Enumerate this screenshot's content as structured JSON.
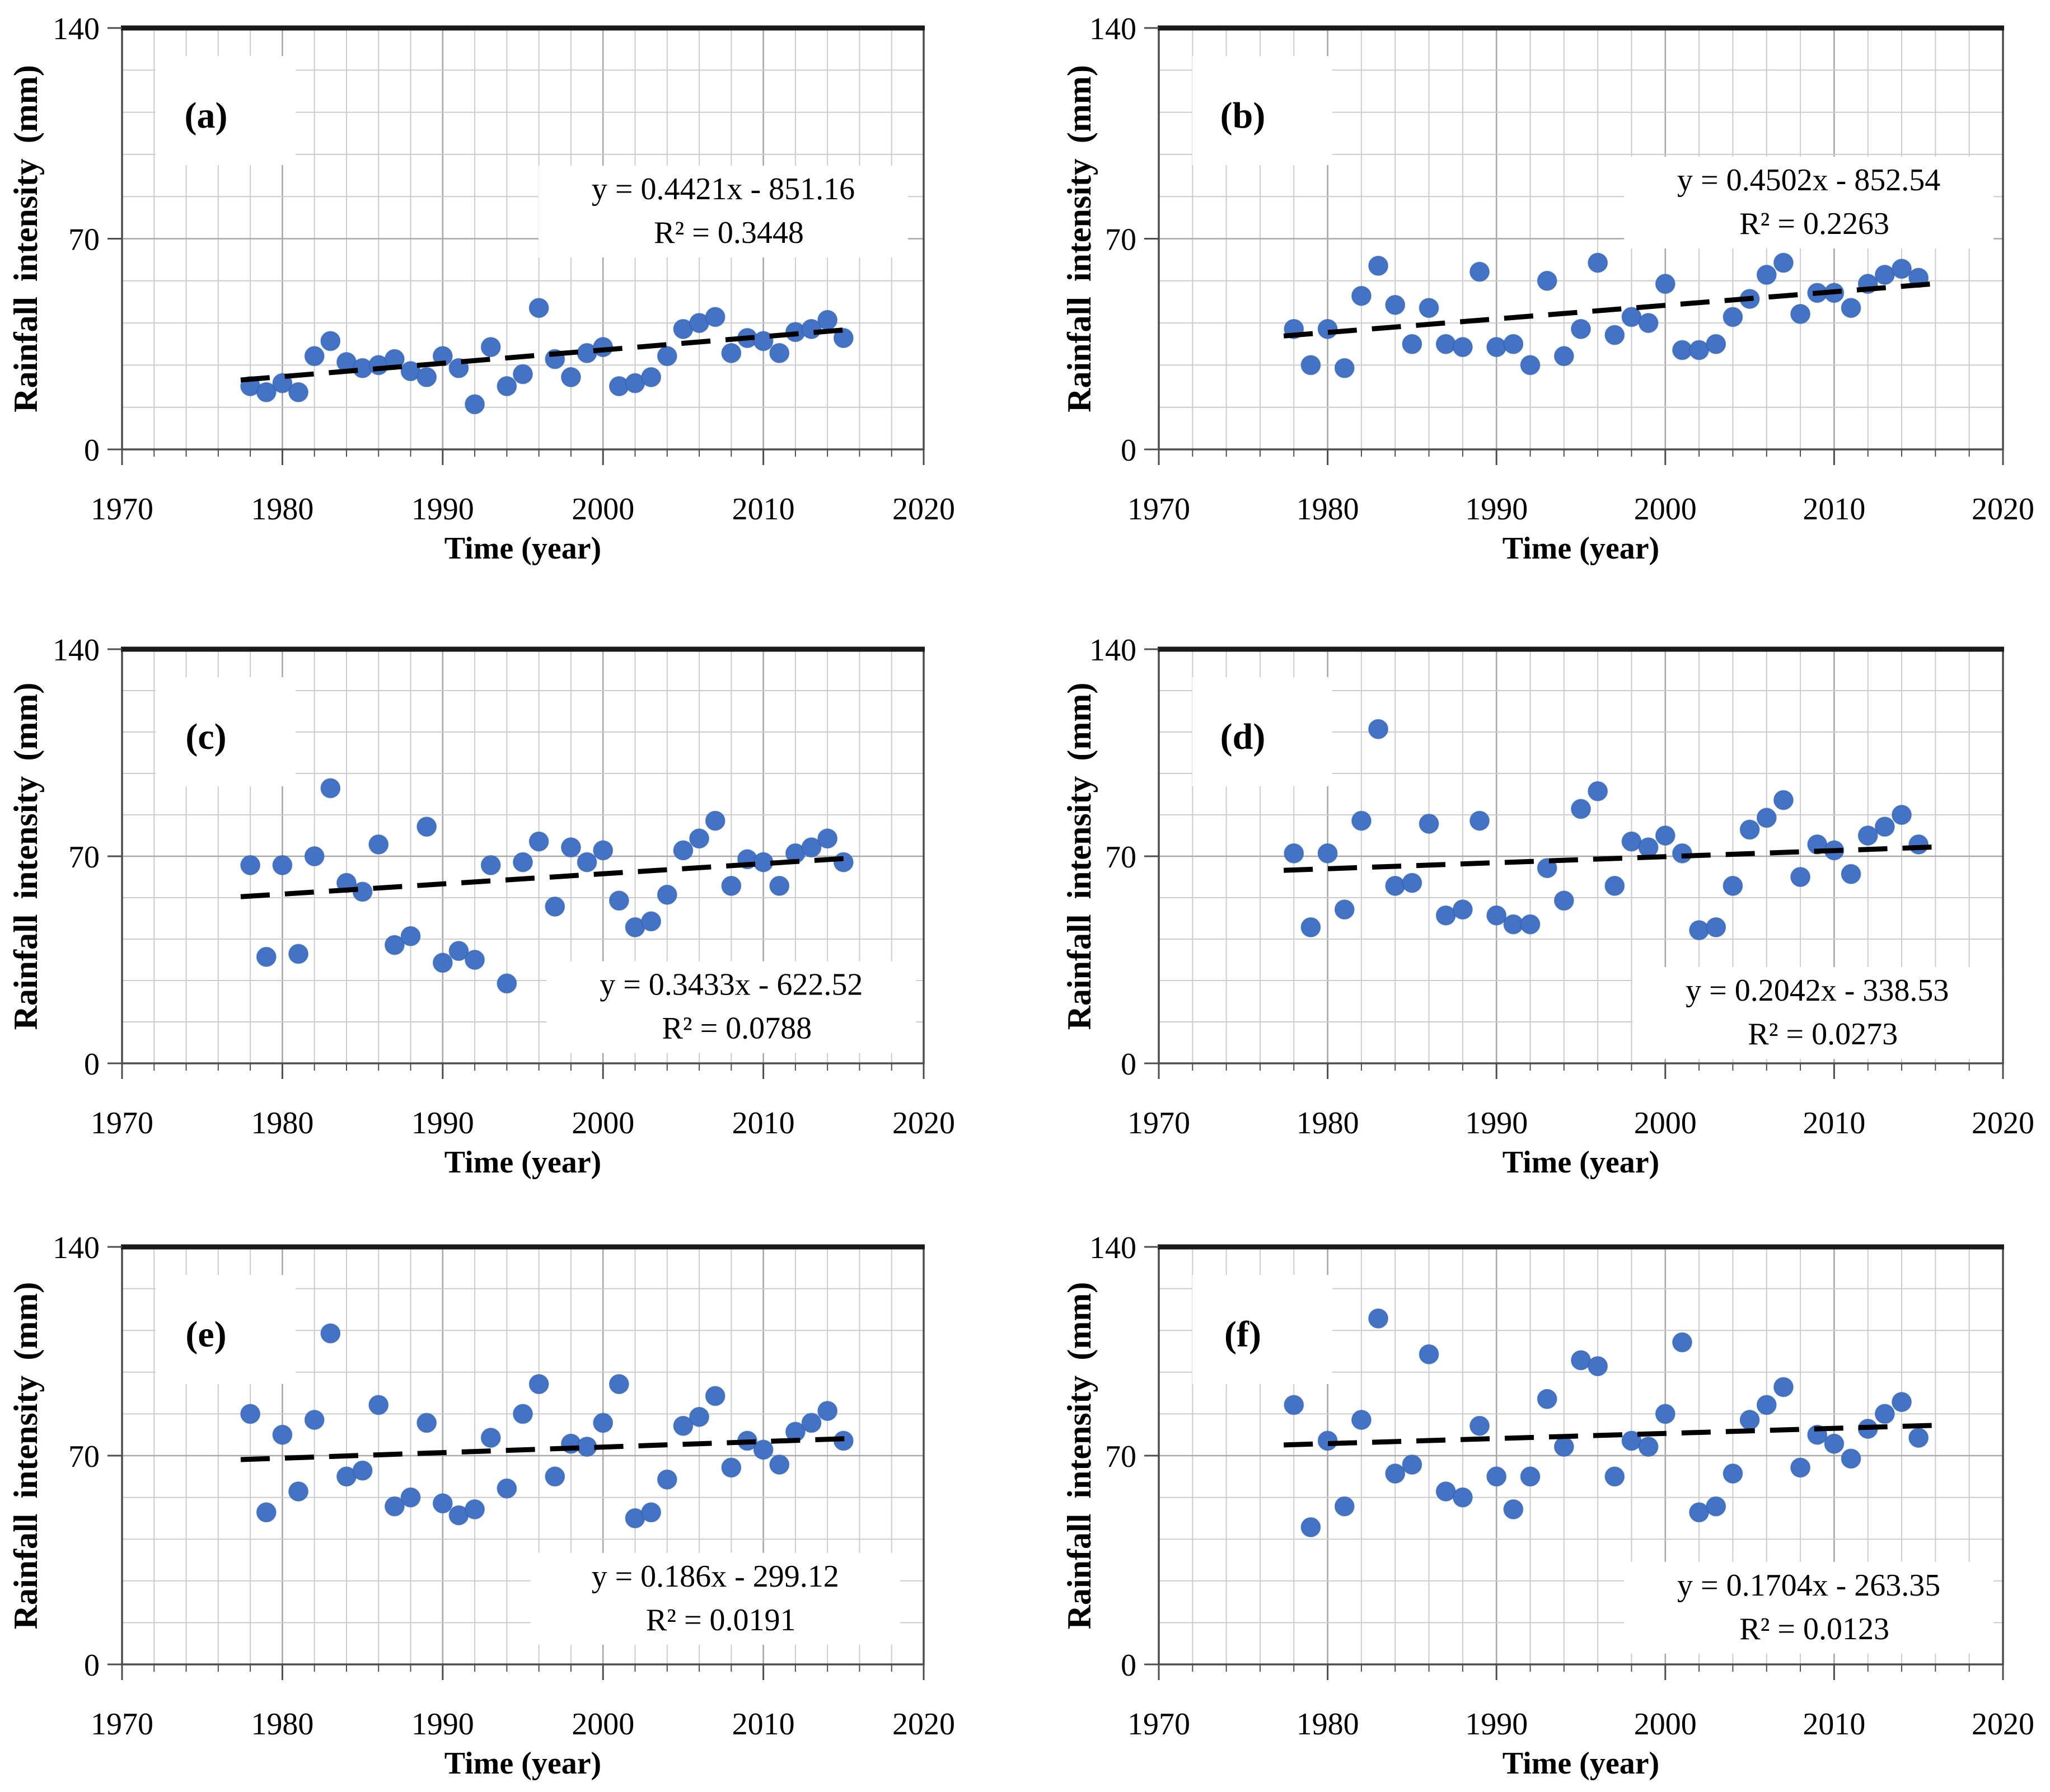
{
  "figure": {
    "description": "Six scatter plots (a)-(f) of rainfall intensity versus time with dashed linear trendlines and regression equations",
    "grid": {
      "columns": 2,
      "rows": 3
    }
  },
  "axes": {
    "x": {
      "title": "Time (year)",
      "min": 1970,
      "max": 2020,
      "major_ticks": [
        1970,
        1980,
        1990,
        2000,
        2010,
        2020
      ],
      "minor_step": 2,
      "grid": true
    },
    "y": {
      "title": "Rainfall intensity (mm)",
      "min": 0,
      "max": 140,
      "major_ticks": [
        0,
        70,
        140
      ],
      "minor_step": 14,
      "grid": true
    }
  },
  "style": {
    "dot_color": "#4472C4",
    "dot_edge_color": "#3060AE",
    "trend_color": "#000000",
    "grid_minor_color": "#cccccc",
    "grid_major_color": "#a8a8a8",
    "frame_color": "#4d4d4d",
    "top_frame_color": "#1a1a1a",
    "background": "#ffffff",
    "trend_style": "dashed"
  },
  "chart_data": [
    {
      "id": "a",
      "label": "(a)",
      "type": "scatter",
      "xlabel": "Time (year)",
      "ylabel": "Rainfall intensity (mm)",
      "xlim": [
        1970,
        2020
      ],
      "ylim": [
        0,
        140
      ],
      "equation": "y = 0.4421x - 851.16",
      "r2": "R² = 0.3448",
      "trend": {
        "slope": 0.4421,
        "intercept": -851.16,
        "x_start": 1977.4,
        "x_end": 2015.8
      },
      "equation_center": {
        "year": 2007.5,
        "value": 79
      },
      "equation_boxed": false,
      "points": [
        [
          1978,
          21
        ],
        [
          1979,
          19
        ],
        [
          1980,
          22
        ],
        [
          1981,
          19
        ],
        [
          1982,
          31
        ],
        [
          1983,
          36
        ],
        [
          1984,
          29
        ],
        [
          1985,
          27
        ],
        [
          1986,
          28
        ],
        [
          1987,
          30
        ],
        [
          1988,
          26
        ],
        [
          1989,
          24
        ],
        [
          1990,
          31
        ],
        [
          1991,
          27
        ],
        [
          1992,
          15
        ],
        [
          1993,
          34
        ],
        [
          1994,
          21
        ],
        [
          1995,
          25
        ],
        [
          1996,
          47
        ],
        [
          1997,
          30
        ],
        [
          1998,
          24
        ],
        [
          1999,
          32
        ],
        [
          2000,
          34
        ],
        [
          2001,
          21
        ],
        [
          2002,
          22
        ],
        [
          2003,
          24
        ],
        [
          2004,
          31
        ],
        [
          2005,
          40
        ],
        [
          2006,
          42
        ],
        [
          2007,
          44
        ],
        [
          2008,
          32
        ],
        [
          2009,
          37
        ],
        [
          2010,
          36
        ],
        [
          2011,
          32
        ],
        [
          2012,
          39
        ],
        [
          2013,
          40
        ],
        [
          2014,
          43
        ],
        [
          2015,
          37
        ]
      ]
    },
    {
      "id": "b",
      "label": "(b)",
      "type": "scatter",
      "xlabel": "Time (year)",
      "ylabel": "Rainfall intensity (mm)",
      "xlim": [
        1970,
        2020
      ],
      "ylim": [
        0,
        140
      ],
      "equation": "y = 0.4502x - 852.54",
      "r2": "R² = 0.2263",
      "trend": {
        "slope": 0.4502,
        "intercept": -852.54,
        "x_start": 1977.4,
        "x_end": 2015.8
      },
      "equation_center": {
        "year": 2008.5,
        "value": 82
      },
      "equation_boxed": false,
      "points": [
        [
          1978,
          40
        ],
        [
          1979,
          28
        ],
        [
          1980,
          40
        ],
        [
          1981,
          27
        ],
        [
          1982,
          51
        ],
        [
          1983,
          61
        ],
        [
          1984,
          48
        ],
        [
          1985,
          35
        ],
        [
          1986,
          47
        ],
        [
          1987,
          35
        ],
        [
          1988,
          34
        ],
        [
          1989,
          59
        ],
        [
          1990,
          34
        ],
        [
          1991,
          35
        ],
        [
          1992,
          28
        ],
        [
          1993,
          56
        ],
        [
          1994,
          31
        ],
        [
          1995,
          40
        ],
        [
          1996,
          62
        ],
        [
          1997,
          38
        ],
        [
          1998,
          44
        ],
        [
          1999,
          42
        ],
        [
          2000,
          55
        ],
        [
          2001,
          33
        ],
        [
          2002,
          33
        ],
        [
          2003,
          35
        ],
        [
          2004,
          44
        ],
        [
          2005,
          50
        ],
        [
          2006,
          58
        ],
        [
          2007,
          62
        ],
        [
          2008,
          45
        ],
        [
          2009,
          52
        ],
        [
          2010,
          52
        ],
        [
          2011,
          47
        ],
        [
          2012,
          55
        ],
        [
          2013,
          58
        ],
        [
          2014,
          60
        ],
        [
          2015,
          57
        ]
      ]
    },
    {
      "id": "c",
      "label": "(c)",
      "type": "scatter",
      "xlabel": "Time (year)",
      "ylabel": "Rainfall intensity (mm)",
      "xlim": [
        1970,
        2020
      ],
      "ylim": [
        0,
        140
      ],
      "equation": "y = 0.3433x - 622.52",
      "r2": "R² = 0.0788",
      "trend": {
        "slope": 0.3433,
        "intercept": -622.52,
        "x_start": 1977.4,
        "x_end": 2015.8
      },
      "equation_center": {
        "year": 2008,
        "value": 19
      },
      "equation_boxed": false,
      "points": [
        [
          1978,
          67
        ],
        [
          1979,
          36
        ],
        [
          1980,
          67
        ],
        [
          1981,
          37
        ],
        [
          1982,
          70
        ],
        [
          1983,
          93
        ],
        [
          1984,
          61
        ],
        [
          1985,
          58
        ],
        [
          1986,
          74
        ],
        [
          1987,
          40
        ],
        [
          1988,
          43
        ],
        [
          1989,
          80
        ],
        [
          1990,
          34
        ],
        [
          1991,
          38
        ],
        [
          1992,
          35
        ],
        [
          1993,
          67
        ],
        [
          1994,
          27
        ],
        [
          1995,
          68
        ],
        [
          1996,
          75
        ],
        [
          1997,
          53
        ],
        [
          1998,
          73
        ],
        [
          1999,
          68
        ],
        [
          2000,
          72
        ],
        [
          2001,
          55
        ],
        [
          2002,
          46
        ],
        [
          2003,
          48
        ],
        [
          2004,
          57
        ],
        [
          2005,
          72
        ],
        [
          2006,
          76
        ],
        [
          2007,
          82
        ],
        [
          2008,
          60
        ],
        [
          2009,
          69
        ],
        [
          2010,
          68
        ],
        [
          2011,
          60
        ],
        [
          2012,
          71
        ],
        [
          2013,
          73
        ],
        [
          2014,
          76
        ],
        [
          2015,
          68
        ]
      ]
    },
    {
      "id": "d",
      "label": "(d)",
      "type": "scatter",
      "xlabel": "Time (year)",
      "ylabel": "Rainfall intensity (mm)",
      "xlim": [
        1970,
        2020
      ],
      "ylim": [
        0,
        140
      ],
      "equation": "y = 0.2042x - 338.53",
      "r2": "R² = 0.0273",
      "trend": {
        "slope": 0.2042,
        "intercept": -338.53,
        "x_start": 1977.4,
        "x_end": 2015.8
      },
      "equation_center": {
        "year": 2009,
        "value": 17
      },
      "equation_boxed": false,
      "points": [
        [
          1978,
          71
        ],
        [
          1979,
          46
        ],
        [
          1980,
          71
        ],
        [
          1981,
          52
        ],
        [
          1982,
          82
        ],
        [
          1983,
          113
        ],
        [
          1984,
          60
        ],
        [
          1985,
          61
        ],
        [
          1986,
          81
        ],
        [
          1987,
          50
        ],
        [
          1988,
          52
        ],
        [
          1989,
          82
        ],
        [
          1990,
          50
        ],
        [
          1991,
          47
        ],
        [
          1992,
          47
        ],
        [
          1993,
          66
        ],
        [
          1994,
          55
        ],
        [
          1995,
          86
        ],
        [
          1996,
          92
        ],
        [
          1997,
          60
        ],
        [
          1998,
          75
        ],
        [
          1999,
          73
        ],
        [
          2000,
          77
        ],
        [
          2001,
          71
        ],
        [
          2002,
          45
        ],
        [
          2003,
          46
        ],
        [
          2004,
          60
        ],
        [
          2005,
          79
        ],
        [
          2006,
          83
        ],
        [
          2007,
          89
        ],
        [
          2008,
          63
        ],
        [
          2009,
          74
        ],
        [
          2010,
          72
        ],
        [
          2011,
          64
        ],
        [
          2012,
          77
        ],
        [
          2013,
          80
        ],
        [
          2014,
          84
        ],
        [
          2015,
          74
        ]
      ]
    },
    {
      "id": "e",
      "label": "(e)",
      "type": "scatter",
      "xlabel": "Time (year)",
      "ylabel": "Rainfall intensity (mm)",
      "xlim": [
        1970,
        2020
      ],
      "ylim": [
        0,
        140
      ],
      "equation": "y = 0.186x - 299.12",
      "r2": "R² = 0.0191",
      "trend": {
        "slope": 0.186,
        "intercept": -299.12,
        "x_start": 1977.4,
        "x_end": 2015.8
      },
      "equation_center": {
        "year": 2007,
        "value": 22
      },
      "equation_boxed": false,
      "points": [
        [
          1978,
          84
        ],
        [
          1979,
          51
        ],
        [
          1980,
          77
        ],
        [
          1981,
          58
        ],
        [
          1982,
          82
        ],
        [
          1983,
          111
        ],
        [
          1984,
          63
        ],
        [
          1985,
          65
        ],
        [
          1986,
          87
        ],
        [
          1987,
          53
        ],
        [
          1988,
          56
        ],
        [
          1989,
          81
        ],
        [
          1990,
          54
        ],
        [
          1991,
          50
        ],
        [
          1992,
          52
        ],
        [
          1993,
          76
        ],
        [
          1994,
          59
        ],
        [
          1995,
          84
        ],
        [
          1996,
          94
        ],
        [
          1997,
          63
        ],
        [
          1998,
          74
        ],
        [
          1999,
          73
        ],
        [
          2000,
          81
        ],
        [
          2001,
          94
        ],
        [
          2002,
          49
        ],
        [
          2003,
          51
        ],
        [
          2004,
          62
        ],
        [
          2005,
          80
        ],
        [
          2006,
          83
        ],
        [
          2007,
          90
        ],
        [
          2008,
          66
        ],
        [
          2009,
          75
        ],
        [
          2010,
          72
        ],
        [
          2011,
          67
        ],
        [
          2012,
          78
        ],
        [
          2013,
          81
        ],
        [
          2014,
          85
        ],
        [
          2015,
          75
        ]
      ]
    },
    {
      "id": "f",
      "label": "(f)",
      "type": "scatter",
      "xlabel": "Time (year)",
      "ylabel": "Rainfall intensity (mm)",
      "xlim": [
        1970,
        2020
      ],
      "ylim": [
        0,
        140
      ],
      "equation": "y = 0.1704x - 263.35",
      "r2": "R² = 0.0123",
      "trend": {
        "slope": 0.1704,
        "intercept": -263.35,
        "x_start": 1977.4,
        "x_end": 2015.8
      },
      "equation_center": {
        "year": 2008.5,
        "value": 19
      },
      "equation_boxed": false,
      "points": [
        [
          1978,
          87
        ],
        [
          1979,
          46
        ],
        [
          1980,
          75
        ],
        [
          1981,
          53
        ],
        [
          1982,
          82
        ],
        [
          1983,
          116
        ],
        [
          1984,
          64
        ],
        [
          1985,
          67
        ],
        [
          1986,
          104
        ],
        [
          1987,
          58
        ],
        [
          1988,
          56
        ],
        [
          1989,
          80
        ],
        [
          1990,
          63
        ],
        [
          1991,
          52
        ],
        [
          1992,
          63
        ],
        [
          1993,
          89
        ],
        [
          1994,
          73
        ],
        [
          1995,
          102
        ],
        [
          1996,
          100
        ],
        [
          1997,
          63
        ],
        [
          1998,
          75
        ],
        [
          1999,
          73
        ],
        [
          2000,
          84
        ],
        [
          2001,
          108
        ],
        [
          2002,
          51
        ],
        [
          2003,
          53
        ],
        [
          2004,
          64
        ],
        [
          2005,
          82
        ],
        [
          2006,
          87
        ],
        [
          2007,
          93
        ],
        [
          2008,
          66
        ],
        [
          2009,
          77
        ],
        [
          2010,
          74
        ],
        [
          2011,
          69
        ],
        [
          2012,
          79
        ],
        [
          2013,
          84
        ],
        [
          2014,
          88
        ],
        [
          2015,
          76
        ]
      ]
    }
  ]
}
